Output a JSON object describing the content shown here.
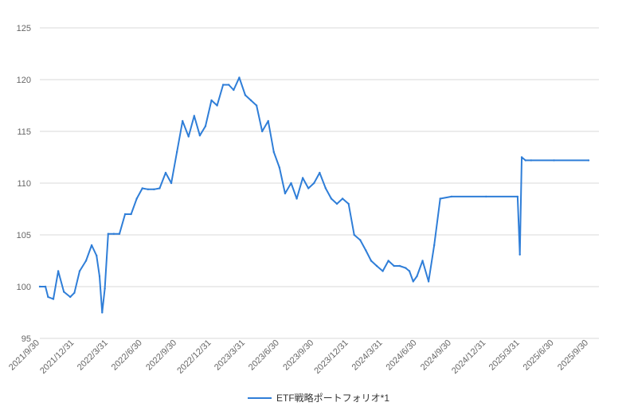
{
  "chart_data": {
    "type": "line",
    "title": "",
    "xlabel": "",
    "ylabel": "",
    "y_ticks": [
      "95",
      "100",
      "105",
      "110",
      "115",
      "120",
      "125"
    ],
    "ylim": [
      95,
      125
    ],
    "x_ticks": [
      "2021/9/30",
      "2021/12/31",
      "2022/3/31",
      "2022/6/30",
      "2022/9/30",
      "2022/12/31",
      "2023/3/31",
      "2023/6/30",
      "2023/9/30",
      "2023/12/31",
      "2024/3/31",
      "2024/6/30",
      "2024/9/30",
      "2024/12/31",
      "2025/3/31",
      "2025/6/30",
      "2025/9/30"
    ],
    "grid": true,
    "legend_position": "bottom",
    "colors": {
      "series": "#2f7ed8",
      "grid": "#d9d9d9",
      "axis_text": "#666666",
      "legend_text": "#333333"
    },
    "series": [
      {
        "name": "ETF戦略ポートフォリオ*1",
        "x": [
          "2021-09-30",
          "2021-10-15",
          "2021-10-22",
          "2021-11-05",
          "2021-11-18",
          "2021-12-03",
          "2021-12-20",
          "2021-12-31",
          "2022-01-14",
          "2022-01-31",
          "2022-02-15",
          "2022-02-28",
          "2022-03-08",
          "2022-03-15",
          "2022-03-22",
          "2022-03-31",
          "2022-04-15",
          "2022-04-30",
          "2022-05-15",
          "2022-05-31",
          "2022-06-15",
          "2022-06-30",
          "2022-07-15",
          "2022-07-31",
          "2022-08-15",
          "2022-08-31",
          "2022-09-15",
          "2022-09-30",
          "2022-10-15",
          "2022-10-31",
          "2022-11-15",
          "2022-11-30",
          "2022-12-15",
          "2022-12-31",
          "2023-01-15",
          "2023-01-31",
          "2023-02-15",
          "2023-02-28",
          "2023-03-15",
          "2023-03-31",
          "2023-04-15",
          "2023-04-30",
          "2023-05-15",
          "2023-05-31",
          "2023-06-15",
          "2023-06-30",
          "2023-07-15",
          "2023-07-31",
          "2023-08-15",
          "2023-08-31",
          "2023-09-15",
          "2023-09-30",
          "2023-10-15",
          "2023-10-31",
          "2023-11-15",
          "2023-11-30",
          "2023-12-15",
          "2023-12-31",
          "2024-01-15",
          "2024-01-31",
          "2024-02-15",
          "2024-02-29",
          "2024-03-15",
          "2024-03-31",
          "2024-04-15",
          "2024-04-30",
          "2024-05-15",
          "2024-05-31",
          "2024-06-10",
          "2024-06-20",
          "2024-06-30",
          "2024-07-15",
          "2024-07-31",
          "2024-08-15",
          "2024-08-31",
          "2024-09-30",
          "2024-12-31",
          "2025-03-25",
          "2025-03-31",
          "2025-04-05",
          "2025-04-15",
          "2025-04-30",
          "2025-06-30",
          "2025-09-30"
        ],
        "values": [
          100,
          100,
          99,
          98.8,
          101.5,
          99.5,
          99,
          99.4,
          101.5,
          102.5,
          104,
          103,
          101,
          97.5,
          99.8,
          105.1,
          105.1,
          105.1,
          107,
          107,
          108.5,
          109.5,
          109.4,
          109.4,
          109.5,
          111,
          110,
          113,
          116,
          114.5,
          116.5,
          114.6,
          115.5,
          118,
          117.5,
          119.5,
          119.5,
          119,
          120.2,
          118.5,
          118,
          117.5,
          115,
          116,
          113,
          111.5,
          109,
          110,
          108.5,
          110.5,
          109.5,
          110,
          111,
          109.5,
          108.5,
          108,
          108.5,
          108,
          105,
          104.5,
          103.5,
          102.5,
          102,
          101.5,
          102.5,
          102,
          102,
          101.8,
          101.5,
          100.5,
          101,
          102.5,
          100.5,
          104,
          108.5,
          108.7,
          108.7,
          108.7,
          103.1,
          112.5,
          112.2,
          112.2,
          112.2,
          112.2
        ]
      }
    ]
  }
}
